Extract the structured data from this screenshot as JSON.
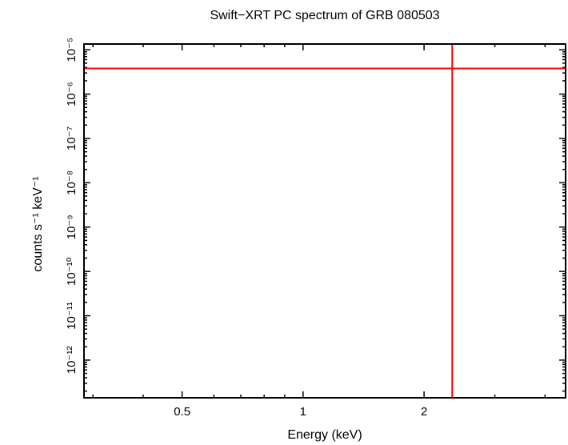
{
  "colors": {
    "frame": "#000000",
    "background": "#ffffff",
    "crosshair": "#ff0000"
  },
  "chart_data": {
    "type": "line",
    "title": "Swift−XRT PC spectrum of GRB 080503",
    "xlabel": "Energy (keV)",
    "ylabel": "counts s⁻¹ keV⁻¹",
    "x_scale": "log",
    "y_scale": "log",
    "x_range": [
      0.285,
      4.5
    ],
    "y_range_log10": [
      -12.85,
      -4.87
    ],
    "x_major_ticks": [
      {
        "value": 0.5,
        "label": "0.5"
      },
      {
        "value": 1,
        "label": "1"
      },
      {
        "value": 2,
        "label": "2"
      }
    ],
    "y_major_ticks": [
      {
        "log10": -5,
        "label": "10⁻⁵"
      },
      {
        "log10": -6,
        "label": "10⁻⁶"
      },
      {
        "log10": -7,
        "label": "10⁻⁷"
      },
      {
        "log10": -8,
        "label": "10⁻⁸"
      },
      {
        "log10": -9,
        "label": "10⁻⁹"
      },
      {
        "log10": -10,
        "label": "10⁻¹⁰"
      },
      {
        "log10": -11,
        "label": "10⁻¹¹"
      },
      {
        "log10": -12,
        "label": "10⁻¹²"
      }
    ],
    "grid": false,
    "legend": null,
    "series": [
      {
        "name": "single-bin error cross",
        "note": "one data bin rendered as a full-width horizontal line and full-height vertical line",
        "crosshair": {
          "x_kev": 2.35,
          "y_log10": -5.42,
          "color": "#ff0000"
        }
      }
    ]
  }
}
